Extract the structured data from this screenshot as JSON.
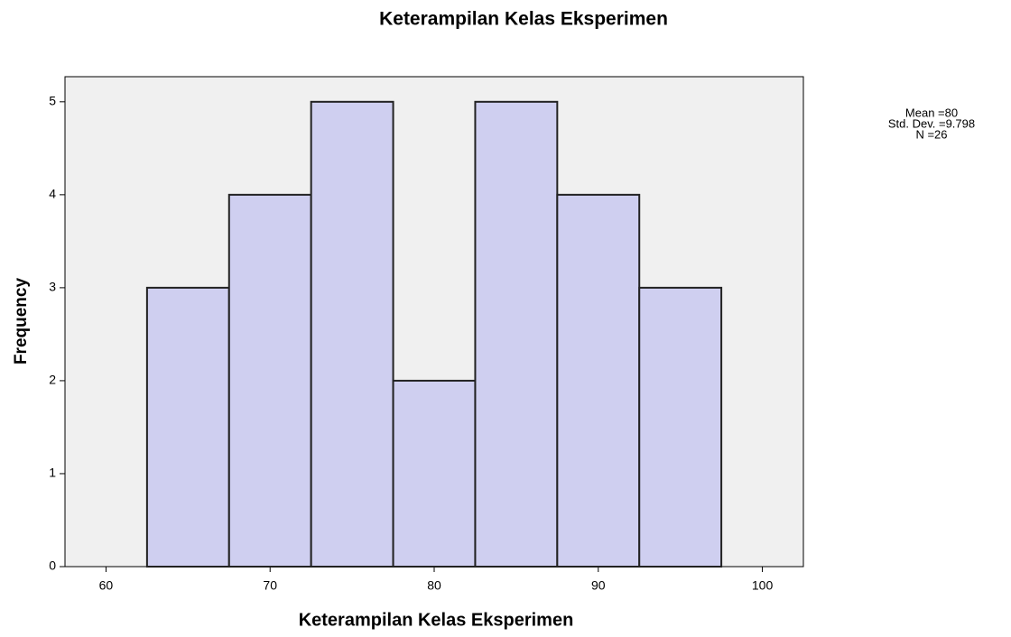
{
  "chart_data": {
    "type": "histogram",
    "title": "Keterampilan Kelas Eksperimen",
    "xlabel": "Keterampilan Kelas Eksperimen",
    "ylabel": "Frequency",
    "bins": [
      62.5,
      67.5,
      72.5,
      77.5,
      82.5,
      87.5,
      92.5,
      97.5
    ],
    "values": [
      3,
      4,
      5,
      2,
      5,
      4,
      3
    ],
    "color": "#cfcff0",
    "xlim": [
      57.5,
      102.5
    ],
    "xticks": [
      60,
      70,
      80,
      90,
      100
    ],
    "ylim": [
      0,
      5.27
    ],
    "yticks": [
      0,
      1,
      2,
      3,
      4,
      5
    ],
    "stats": [
      "Mean =80",
      "Std. Dev. =9.798",
      "N =26"
    ]
  }
}
